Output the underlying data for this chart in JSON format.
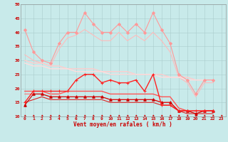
{
  "xlabel": "Vent moyen/en rafales ( km/h )",
  "xlim": [
    -0.5,
    23.5
  ],
  "ylim": [
    10,
    50
  ],
  "yticks": [
    10,
    15,
    20,
    25,
    30,
    35,
    40,
    45,
    50
  ],
  "xticks": [
    0,
    1,
    2,
    3,
    4,
    5,
    6,
    7,
    8,
    9,
    10,
    11,
    12,
    13,
    14,
    15,
    16,
    17,
    18,
    19,
    20,
    21,
    22,
    23
  ],
  "bg_color": "#c8eaea",
  "grid_color": "#aacccc",
  "lines": [
    {
      "y": [
        41,
        33,
        30,
        29,
        36,
        40,
        40,
        47,
        43,
        40,
        40,
        43,
        40,
        43,
        40,
        47,
        41,
        36,
        25,
        23,
        18,
        23,
        23
      ],
      "color": "#ff9999",
      "lw": 0.8,
      "marker": "D",
      "ms": 2.0,
      "zorder": 3
    },
    {
      "y": [
        32,
        30,
        29,
        28,
        34,
        38,
        39,
        41,
        39,
        37,
        37,
        40,
        37,
        39,
        37,
        40,
        37,
        33,
        24,
        22,
        17,
        22,
        22
      ],
      "color": "#ffbbbb",
      "lw": 0.8,
      "marker": null,
      "ms": 0,
      "zorder": 2
    },
    {
      "y": [
        30,
        29,
        29,
        28,
        28,
        27,
        27,
        27,
        27,
        26,
        26,
        26,
        26,
        25,
        25,
        25,
        25,
        24,
        24,
        24,
        23,
        23,
        23
      ],
      "color": "#ffcccc",
      "lw": 1.0,
      "marker": null,
      "ms": 0,
      "zorder": 2
    },
    {
      "y": [
        29,
        28,
        28,
        27,
        27,
        27,
        26,
        26,
        26,
        26,
        25,
        25,
        25,
        25,
        25,
        25,
        24,
        24,
        24,
        23,
        23,
        23,
        23
      ],
      "color": "#ffdddd",
      "lw": 1.0,
      "marker": null,
      "ms": 0,
      "zorder": 2
    },
    {
      "y": [
        15,
        19,
        19,
        19,
        19,
        19,
        23,
        25,
        25,
        22,
        23,
        22,
        22,
        23,
        19,
        25,
        14,
        14,
        12,
        12,
        12,
        12,
        12
      ],
      "color": "#ff2222",
      "lw": 1.0,
      "marker": "+",
      "ms": 3.5,
      "zorder": 5
    },
    {
      "y": [
        19,
        19,
        19,
        18,
        18,
        19,
        19,
        19,
        19,
        19,
        18,
        18,
        18,
        18,
        18,
        18,
        17,
        17,
        13,
        12,
        12,
        12,
        12
      ],
      "color": "#ff5555",
      "lw": 1.0,
      "marker": null,
      "ms": 0,
      "zorder": 2
    },
    {
      "y": [
        18,
        18,
        18,
        17,
        17,
        17,
        17,
        17,
        17,
        17,
        16,
        16,
        16,
        16,
        16,
        16,
        15,
        15,
        12,
        12,
        11,
        12,
        12
      ],
      "color": "#ff7777",
      "lw": 0.8,
      "marker": null,
      "ms": 0,
      "zorder": 2
    },
    {
      "y": [
        14,
        18,
        18,
        17,
        17,
        17,
        17,
        17,
        17,
        17,
        16,
        16,
        16,
        16,
        16,
        16,
        15,
        15,
        12,
        12,
        11,
        12,
        12
      ],
      "color": "#cc0000",
      "lw": 0.8,
      "marker": "^",
      "ms": 2.5,
      "zorder": 4
    },
    {
      "y": [
        15,
        16,
        17,
        16,
        16,
        16,
        16,
        16,
        16,
        16,
        15,
        15,
        15,
        15,
        15,
        15,
        14,
        14,
        12,
        11,
        11,
        11,
        11
      ],
      "color": "#dd2222",
      "lw": 0.8,
      "marker": null,
      "ms": 0,
      "zorder": 2
    }
  ]
}
